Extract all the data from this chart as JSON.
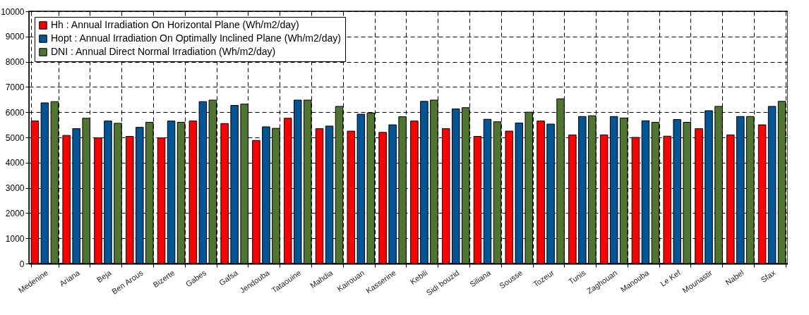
{
  "chart_data": {
    "type": "bar",
    "categories": [
      "Medenine",
      "Ariana",
      "Beja",
      "Ben Arous",
      "Bizerte",
      "Gabes",
      "Gafsa",
      "Jendouba",
      "Tataouine",
      "Mahdia",
      "Kairouan",
      "Kasserine",
      "Kebili",
      "Sidi bouzid",
      "Siliana",
      "Sousse",
      "Tozeur",
      "Tunis",
      "Zaghouan",
      "Manouba",
      "Le Kef",
      "Mounastir",
      "Nabel",
      "Sfax"
    ],
    "series": [
      {
        "name": "Hh : Annual Irradiation On Horizontal Plane (Wh/m2/day)",
        "color": "#ff0000",
        "values": [
          5650,
          5080,
          4980,
          5040,
          4980,
          5650,
          5550,
          4880,
          5760,
          5350,
          5250,
          5200,
          5650,
          5350,
          5040,
          5250,
          5650,
          5100,
          5100,
          5000,
          5050,
          5350,
          5100,
          5500
        ]
      },
      {
        "name": "Hopt : Annual Irradiation On Optimally Inclined Plane (Wh/m2/day)",
        "color": "#005596",
        "values": [
          6370,
          5350,
          5650,
          5400,
          5650,
          6420,
          6270,
          5420,
          6480,
          5450,
          5920,
          5500,
          6430,
          6130,
          5720,
          5570,
          5530,
          5830,
          5830,
          5660,
          5710,
          6060,
          5830,
          6230
        ]
      },
      {
        "name": "DNI : Annual Direct Normal Irradiation (Wh/m2/day)",
        "color": "#4f7530",
        "values": [
          6420,
          5760,
          5560,
          5600,
          5600,
          6480,
          6320,
          5360,
          6480,
          6230,
          5970,
          5820,
          6480,
          6180,
          5620,
          6000,
          6530,
          5860,
          5770,
          5600,
          5600,
          6230,
          5830,
          6430
        ]
      }
    ],
    "ylim": [
      0,
      10000
    ],
    "yticks": [
      0,
      1000,
      2000,
      3000,
      4000,
      5000,
      6000,
      7000,
      8000,
      9000,
      10000
    ],
    "grid": true,
    "legend": "top left"
  }
}
